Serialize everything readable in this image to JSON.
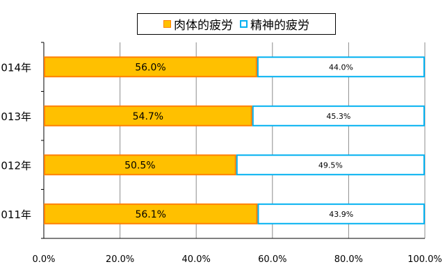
{
  "chart_data": {
    "type": "bar",
    "orientation": "horizontal",
    "stacked": true,
    "percent": true,
    "categories": [
      "2014年",
      "2013年",
      "2012年",
      "2011年"
    ],
    "series": [
      {
        "name": "肉体的疲労",
        "values": [
          56.0,
          54.7,
          50.5,
          56.1
        ],
        "labels": [
          "56.0%",
          "54.7%",
          "50.5%",
          "56.1%"
        ],
        "color": "#ffc000",
        "stroke": "#ff8000"
      },
      {
        "name": "精神的疲労",
        "values": [
          44.0,
          45.3,
          49.5,
          43.9
        ],
        "labels": [
          "44.0%",
          "45.3%",
          "49.5%",
          "43.9%"
        ],
        "color": "#ffffff",
        "stroke": "#00b0f0"
      }
    ],
    "xlim": [
      0,
      100
    ],
    "xticks": [
      "0.0%",
      "20.0%",
      "40.0%",
      "60.0%",
      "80.0%",
      "100.0%"
    ],
    "grid": true,
    "legend": "top"
  }
}
